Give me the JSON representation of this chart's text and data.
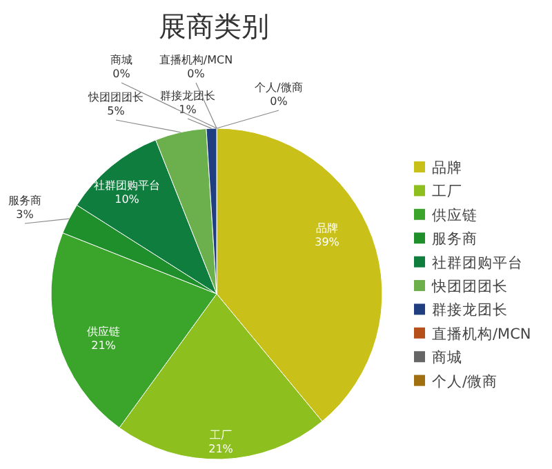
{
  "chart_data": {
    "type": "pie",
    "title": "展商类别",
    "categories": [
      "品牌",
      "工厂",
      "供应链",
      "服务商",
      "社群团购平台",
      "快团团团长",
      "群接龙团长",
      "直播机构/MCN",
      "商城",
      "个人/微商"
    ],
    "values": [
      39,
      21,
      21,
      3,
      10,
      5,
      1,
      0,
      0,
      0
    ],
    "colors": [
      "#c9c01a",
      "#8dbf1f",
      "#3ba52b",
      "#1f8f2b",
      "#0f7d3d",
      "#6bb04d",
      "#1f3f80",
      "#b5501a",
      "#666666",
      "#a07010"
    ],
    "value_labels": [
      "39%",
      "21%",
      "21%",
      "3%",
      "10%",
      "5%",
      "1%",
      "0%",
      "0%",
      "0%"
    ],
    "legend": "right"
  }
}
